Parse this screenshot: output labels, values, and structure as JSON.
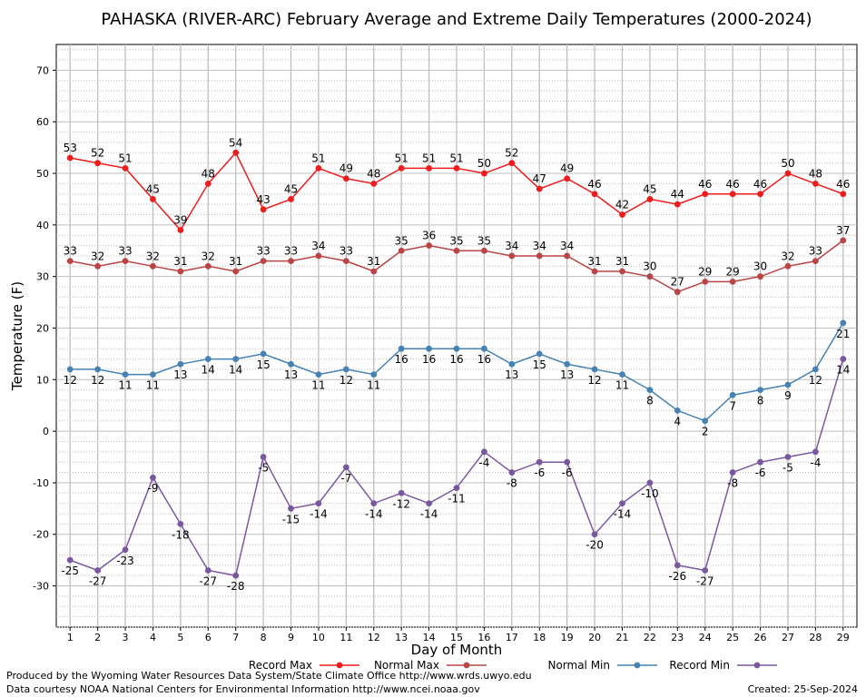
{
  "chart_data": {
    "type": "line",
    "title": "PAHASKA (RIVER-ARC) February Average and Extreme Daily Temperatures (2000-2024)",
    "xlabel": "Day of Month",
    "ylabel": "Temperature (F)",
    "xlim": [
      0.5,
      29.5
    ],
    "ylim": [
      -38,
      75
    ],
    "y_ticks": [
      -30,
      -20,
      -10,
      0,
      10,
      20,
      30,
      40,
      50,
      60,
      70
    ],
    "grid": true,
    "legend_position": "bottom",
    "x": [
      1,
      2,
      3,
      4,
      5,
      6,
      7,
      8,
      9,
      10,
      11,
      12,
      13,
      14,
      15,
      16,
      17,
      18,
      19,
      20,
      21,
      22,
      23,
      24,
      25,
      26,
      27,
      28,
      29
    ],
    "series": [
      {
        "name": "Record Max",
        "color": "#ee1c1c",
        "values": [
          53,
          52,
          51,
          45,
          39,
          48,
          54,
          43,
          45,
          51,
          49,
          48,
          51,
          51,
          51,
          50,
          52,
          47,
          49,
          46,
          42,
          45,
          44,
          46,
          46,
          46,
          50,
          48,
          46
        ]
      },
      {
        "name": "Normal Max",
        "color": "#bb4444",
        "values": [
          33,
          32,
          33,
          32,
          31,
          32,
          31,
          33,
          33,
          34,
          33,
          31,
          35,
          36,
          35,
          35,
          34,
          34,
          34,
          31,
          31,
          30,
          27,
          29,
          29,
          30,
          32,
          33,
          37
        ]
      },
      {
        "name": "Normal Min",
        "color": "#4682b4",
        "values": [
          12,
          12,
          11,
          11,
          13,
          14,
          14,
          15,
          13,
          11,
          12,
          11,
          16,
          16,
          16,
          16,
          13,
          15,
          13,
          12,
          11,
          8,
          4,
          2,
          7,
          8,
          9,
          12,
          21
        ]
      },
      {
        "name": "Record Min",
        "color": "#7a58a0",
        "values": [
          -25,
          -27,
          -23,
          -9,
          -18,
          -27,
          -28,
          -5,
          -15,
          -14,
          -7,
          -14,
          -12,
          -14,
          -11,
          -4,
          -8,
          -6,
          -6,
          -20,
          -14,
          -10,
          -26,
          -27,
          -8,
          -6,
          -5,
          -4,
          14
        ]
      }
    ]
  },
  "footer": {
    "produced_by": "Produced by the Wyoming Water Resources Data System/State Climate Office http://www.wrds.uwyo.edu",
    "courtesy": "Data courtesy NOAA National Centers for Environmental Information http://www.ncei.noaa.gov",
    "created": "Created:  25-Sep-2024"
  }
}
